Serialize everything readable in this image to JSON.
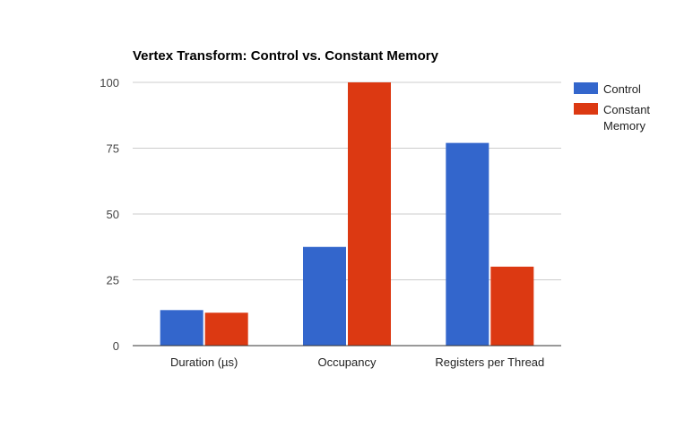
{
  "chart_data": {
    "type": "bar",
    "title": "Vertex Transform: Control vs. Constant Memory",
    "xlabel": "",
    "ylabel": "",
    "categories": [
      "Duration (µs)",
      "Occupancy",
      "Registers per Thread"
    ],
    "series": [
      {
        "name": "Control",
        "values": [
          13.5,
          37.5,
          77
        ],
        "color": "#3366cc"
      },
      {
        "name": "Constant Memory",
        "values": [
          12.5,
          100,
          30
        ],
        "color": "#dc3912"
      }
    ],
    "ylim": [
      0,
      100
    ],
    "yticks": [
      "0",
      "25",
      "50",
      "75",
      "100"
    ],
    "grid": true,
    "legend_position": "right",
    "legend_lines": [
      [
        "Control"
      ],
      [
        "Constant",
        "Memory"
      ]
    ]
  }
}
